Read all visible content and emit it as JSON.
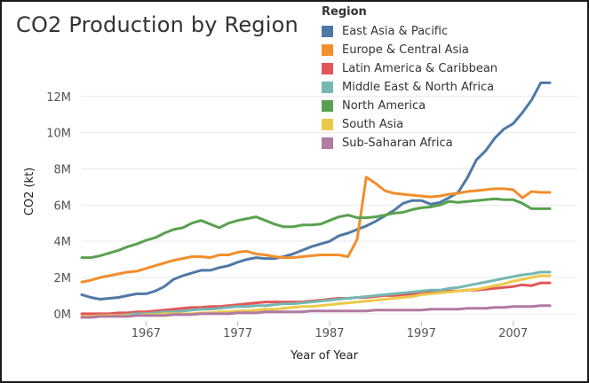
{
  "chart_data": {
    "type": "line",
    "title": "CO2 Production by Region",
    "xlabel": "Year of Year",
    "ylabel": "CO2 (kt)",
    "xlim": [
      1960,
      2014
    ],
    "ylim": [
      -300000,
      13800000
    ],
    "x_ticks": [
      1967,
      1977,
      1987,
      1997,
      2007
    ],
    "y_ticks": [
      {
        "value": 0,
        "label": "0M"
      },
      {
        "value": 2000000,
        "label": "2M"
      },
      {
        "value": 4000000,
        "label": "4M"
      },
      {
        "value": 6000000,
        "label": "6M"
      },
      {
        "value": 8000000,
        "label": "8M"
      },
      {
        "value": 10000000,
        "label": "10M"
      },
      {
        "value": 12000000,
        "label": "12M"
      }
    ],
    "grid": "horizontal",
    "legend": {
      "title": "Region",
      "placement": "top-right"
    },
    "x": [
      1960,
      1961,
      1962,
      1963,
      1964,
      1965,
      1966,
      1967,
      1968,
      1969,
      1970,
      1971,
      1972,
      1973,
      1974,
      1975,
      1976,
      1977,
      1978,
      1979,
      1980,
      1981,
      1982,
      1983,
      1984,
      1985,
      1986,
      1987,
      1988,
      1989,
      1990,
      1991,
      1992,
      1993,
      1994,
      1995,
      1996,
      1997,
      1998,
      1999,
      2000,
      2001,
      2002,
      2003,
      2004,
      2005,
      2006,
      2007,
      2008,
      2009,
      2010,
      2011
    ],
    "series": [
      {
        "name": "East Asia & Pacific",
        "color": "#4e79a7",
        "values": [
          1050000,
          900000,
          800000,
          850000,
          900000,
          1000000,
          1100000,
          1100000,
          1250000,
          1500000,
          1900000,
          2100000,
          2250000,
          2400000,
          2400000,
          2550000,
          2650000,
          2850000,
          3000000,
          3100000,
          3050000,
          3050000,
          3150000,
          3300000,
          3500000,
          3700000,
          3850000,
          4000000,
          4300000,
          4450000,
          4650000,
          4850000,
          5100000,
          5400000,
          5700000,
          6100000,
          6250000,
          6250000,
          6050000,
          6150000,
          6400000,
          6700000,
          7500000,
          8500000,
          9000000,
          9700000,
          10200000,
          10500000,
          11100000,
          11800000,
          12750000,
          12750000
        ]
      },
      {
        "name": "Europe & Central Asia",
        "color": "#f28e2b",
        "values": [
          1750000,
          1850000,
          2000000,
          2100000,
          2200000,
          2300000,
          2350000,
          2500000,
          2650000,
          2800000,
          2950000,
          3050000,
          3150000,
          3150000,
          3100000,
          3250000,
          3250000,
          3400000,
          3450000,
          3300000,
          3250000,
          3150000,
          3100000,
          3100000,
          3150000,
          3200000,
          3250000,
          3250000,
          3250000,
          3150000,
          4100000,
          7550000,
          7200000,
          6800000,
          6650000,
          6600000,
          6550000,
          6500000,
          6450000,
          6500000,
          6600000,
          6650000,
          6750000,
          6800000,
          6850000,
          6900000,
          6900000,
          6850000,
          6400000,
          6750000,
          6700000,
          6700000
        ]
      },
      {
        "name": "Latin America & Caribbean",
        "color": "#e15759",
        "values": [
          0,
          0,
          0,
          0,
          50000,
          50000,
          100000,
          100000,
          150000,
          200000,
          250000,
          300000,
          350000,
          350000,
          400000,
          400000,
          450000,
          500000,
          550000,
          600000,
          650000,
          650000,
          650000,
          650000,
          650000,
          700000,
          750000,
          800000,
          850000,
          850000,
          900000,
          900000,
          950000,
          1000000,
          1000000,
          1050000,
          1100000,
          1150000,
          1200000,
          1200000,
          1250000,
          1250000,
          1300000,
          1300000,
          1350000,
          1400000,
          1450000,
          1500000,
          1600000,
          1550000,
          1700000,
          1700000
        ]
      },
      {
        "name": "Middle East & North Africa",
        "color": "#76b7b2",
        "values": [
          -200000,
          -200000,
          -150000,
          -100000,
          -100000,
          -50000,
          0,
          0,
          50000,
          100000,
          100000,
          150000,
          200000,
          250000,
          250000,
          300000,
          350000,
          400000,
          400000,
          450000,
          450000,
          500000,
          550000,
          550000,
          600000,
          650000,
          700000,
          750000,
          800000,
          850000,
          900000,
          950000,
          1000000,
          1050000,
          1100000,
          1150000,
          1200000,
          1250000,
          1300000,
          1300000,
          1400000,
          1450000,
          1550000,
          1650000,
          1750000,
          1850000,
          1950000,
          2050000,
          2150000,
          2200000,
          2300000,
          2300000
        ]
      },
      {
        "name": "North America",
        "color": "#59a14f",
        "values": [
          3100000,
          3100000,
          3200000,
          3350000,
          3500000,
          3700000,
          3850000,
          4050000,
          4200000,
          4450000,
          4650000,
          4750000,
          5000000,
          5150000,
          4950000,
          4750000,
          5000000,
          5150000,
          5250000,
          5350000,
          5150000,
          4950000,
          4800000,
          4800000,
          4900000,
          4900000,
          4950000,
          5150000,
          5350000,
          5450000,
          5300000,
          5300000,
          5350000,
          5450000,
          5550000,
          5600000,
          5750000,
          5850000,
          5900000,
          6000000,
          6200000,
          6150000,
          6200000,
          6250000,
          6300000,
          6350000,
          6300000,
          6300000,
          6100000,
          5800000,
          5800000,
          5800000
        ]
      },
      {
        "name": "South Asia",
        "color": "#edc948",
        "values": [
          -150000,
          -150000,
          -100000,
          -100000,
          -100000,
          -100000,
          -100000,
          -50000,
          -50000,
          0,
          0,
          0,
          0,
          50000,
          50000,
          100000,
          100000,
          150000,
          150000,
          200000,
          250000,
          250000,
          300000,
          350000,
          400000,
          400000,
          450000,
          500000,
          550000,
          600000,
          650000,
          700000,
          750000,
          800000,
          850000,
          900000,
          950000,
          1050000,
          1100000,
          1150000,
          1200000,
          1250000,
          1300000,
          1350000,
          1450000,
          1550000,
          1650000,
          1800000,
          1900000,
          2000000,
          2100000,
          2100000
        ]
      },
      {
        "name": "Sub-Saharan Africa",
        "color": "#b07aa1",
        "values": [
          -200000,
          -200000,
          -150000,
          -150000,
          -150000,
          -150000,
          -100000,
          -100000,
          -100000,
          -100000,
          -50000,
          -50000,
          -50000,
          0,
          0,
          0,
          0,
          50000,
          50000,
          50000,
          100000,
          100000,
          100000,
          100000,
          100000,
          150000,
          150000,
          150000,
          150000,
          150000,
          150000,
          150000,
          200000,
          200000,
          200000,
          200000,
          200000,
          200000,
          250000,
          250000,
          250000,
          250000,
          300000,
          300000,
          300000,
          350000,
          350000,
          400000,
          400000,
          400000,
          450000,
          450000
        ]
      }
    ]
  }
}
